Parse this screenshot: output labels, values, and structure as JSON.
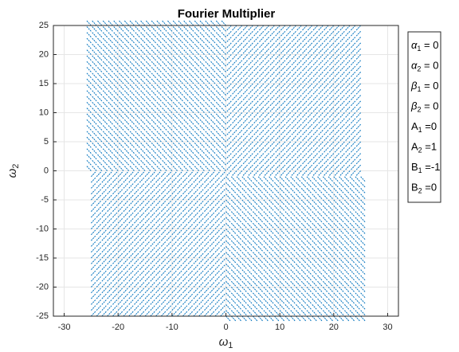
{
  "chart_data": {
    "type": "quiver",
    "title": "Fourier Multiplier",
    "xlabel": {
      "symbol": "ω",
      "subscript": "1"
    },
    "ylabel": {
      "symbol": "ω",
      "subscript": "2"
    },
    "x": [
      -25,
      -24,
      -23,
      -22,
      -21,
      -20,
      -19,
      -18,
      -17,
      -16,
      -15,
      -14,
      -13,
      -12,
      -11,
      -10,
      -9,
      -8,
      -7,
      -6,
      -5,
      -4,
      -3,
      -2,
      -1,
      0,
      1,
      2,
      3,
      4,
      5,
      6,
      7,
      8,
      9,
      10,
      11,
      12,
      13,
      14,
      15,
      16,
      17,
      18,
      19,
      20,
      21,
      22,
      23,
      24,
      25
    ],
    "y": [
      -25,
      -24,
      -23,
      -22,
      -21,
      -20,
      -19,
      -18,
      -17,
      -16,
      -15,
      -14,
      -13,
      -12,
      -11,
      -10,
      -9,
      -8,
      -7,
      -6,
      -5,
      -4,
      -3,
      -2,
      -1,
      0,
      1,
      2,
      3,
      4,
      5,
      6,
      7,
      8,
      9,
      10,
      11,
      12,
      13,
      14,
      15,
      16,
      17,
      18,
      19,
      20,
      21,
      22,
      23,
      24,
      25
    ],
    "color": "#0072bd",
    "xlim": [
      -32,
      32
    ],
    "xticks": [
      -30,
      -20,
      -10,
      0,
      10,
      20,
      30
    ],
    "ylim": [
      -25,
      25
    ],
    "yticks": [
      -25,
      -20,
      -15,
      -10,
      -5,
      0,
      5,
      10,
      15,
      20,
      25
    ],
    "grid": true,
    "legend": [
      {
        "symbol": "α",
        "subscript": "1",
        "text": " = 0"
      },
      {
        "symbol": "α",
        "subscript": "2",
        "text": " = 0"
      },
      {
        "symbol": "β",
        "subscript": "1",
        "text": " = 0"
      },
      {
        "symbol": "β",
        "subscript": "2",
        "text": " = 0"
      },
      {
        "symbol": "A",
        "subscript": "1",
        "text": " =0"
      },
      {
        "symbol": "A",
        "subscript": "2",
        "text": " =1"
      },
      {
        "symbol": "B",
        "subscript": "1",
        "text": " =-1"
      },
      {
        "symbol": "B",
        "subscript": "2",
        "text": " =0"
      }
    ]
  }
}
